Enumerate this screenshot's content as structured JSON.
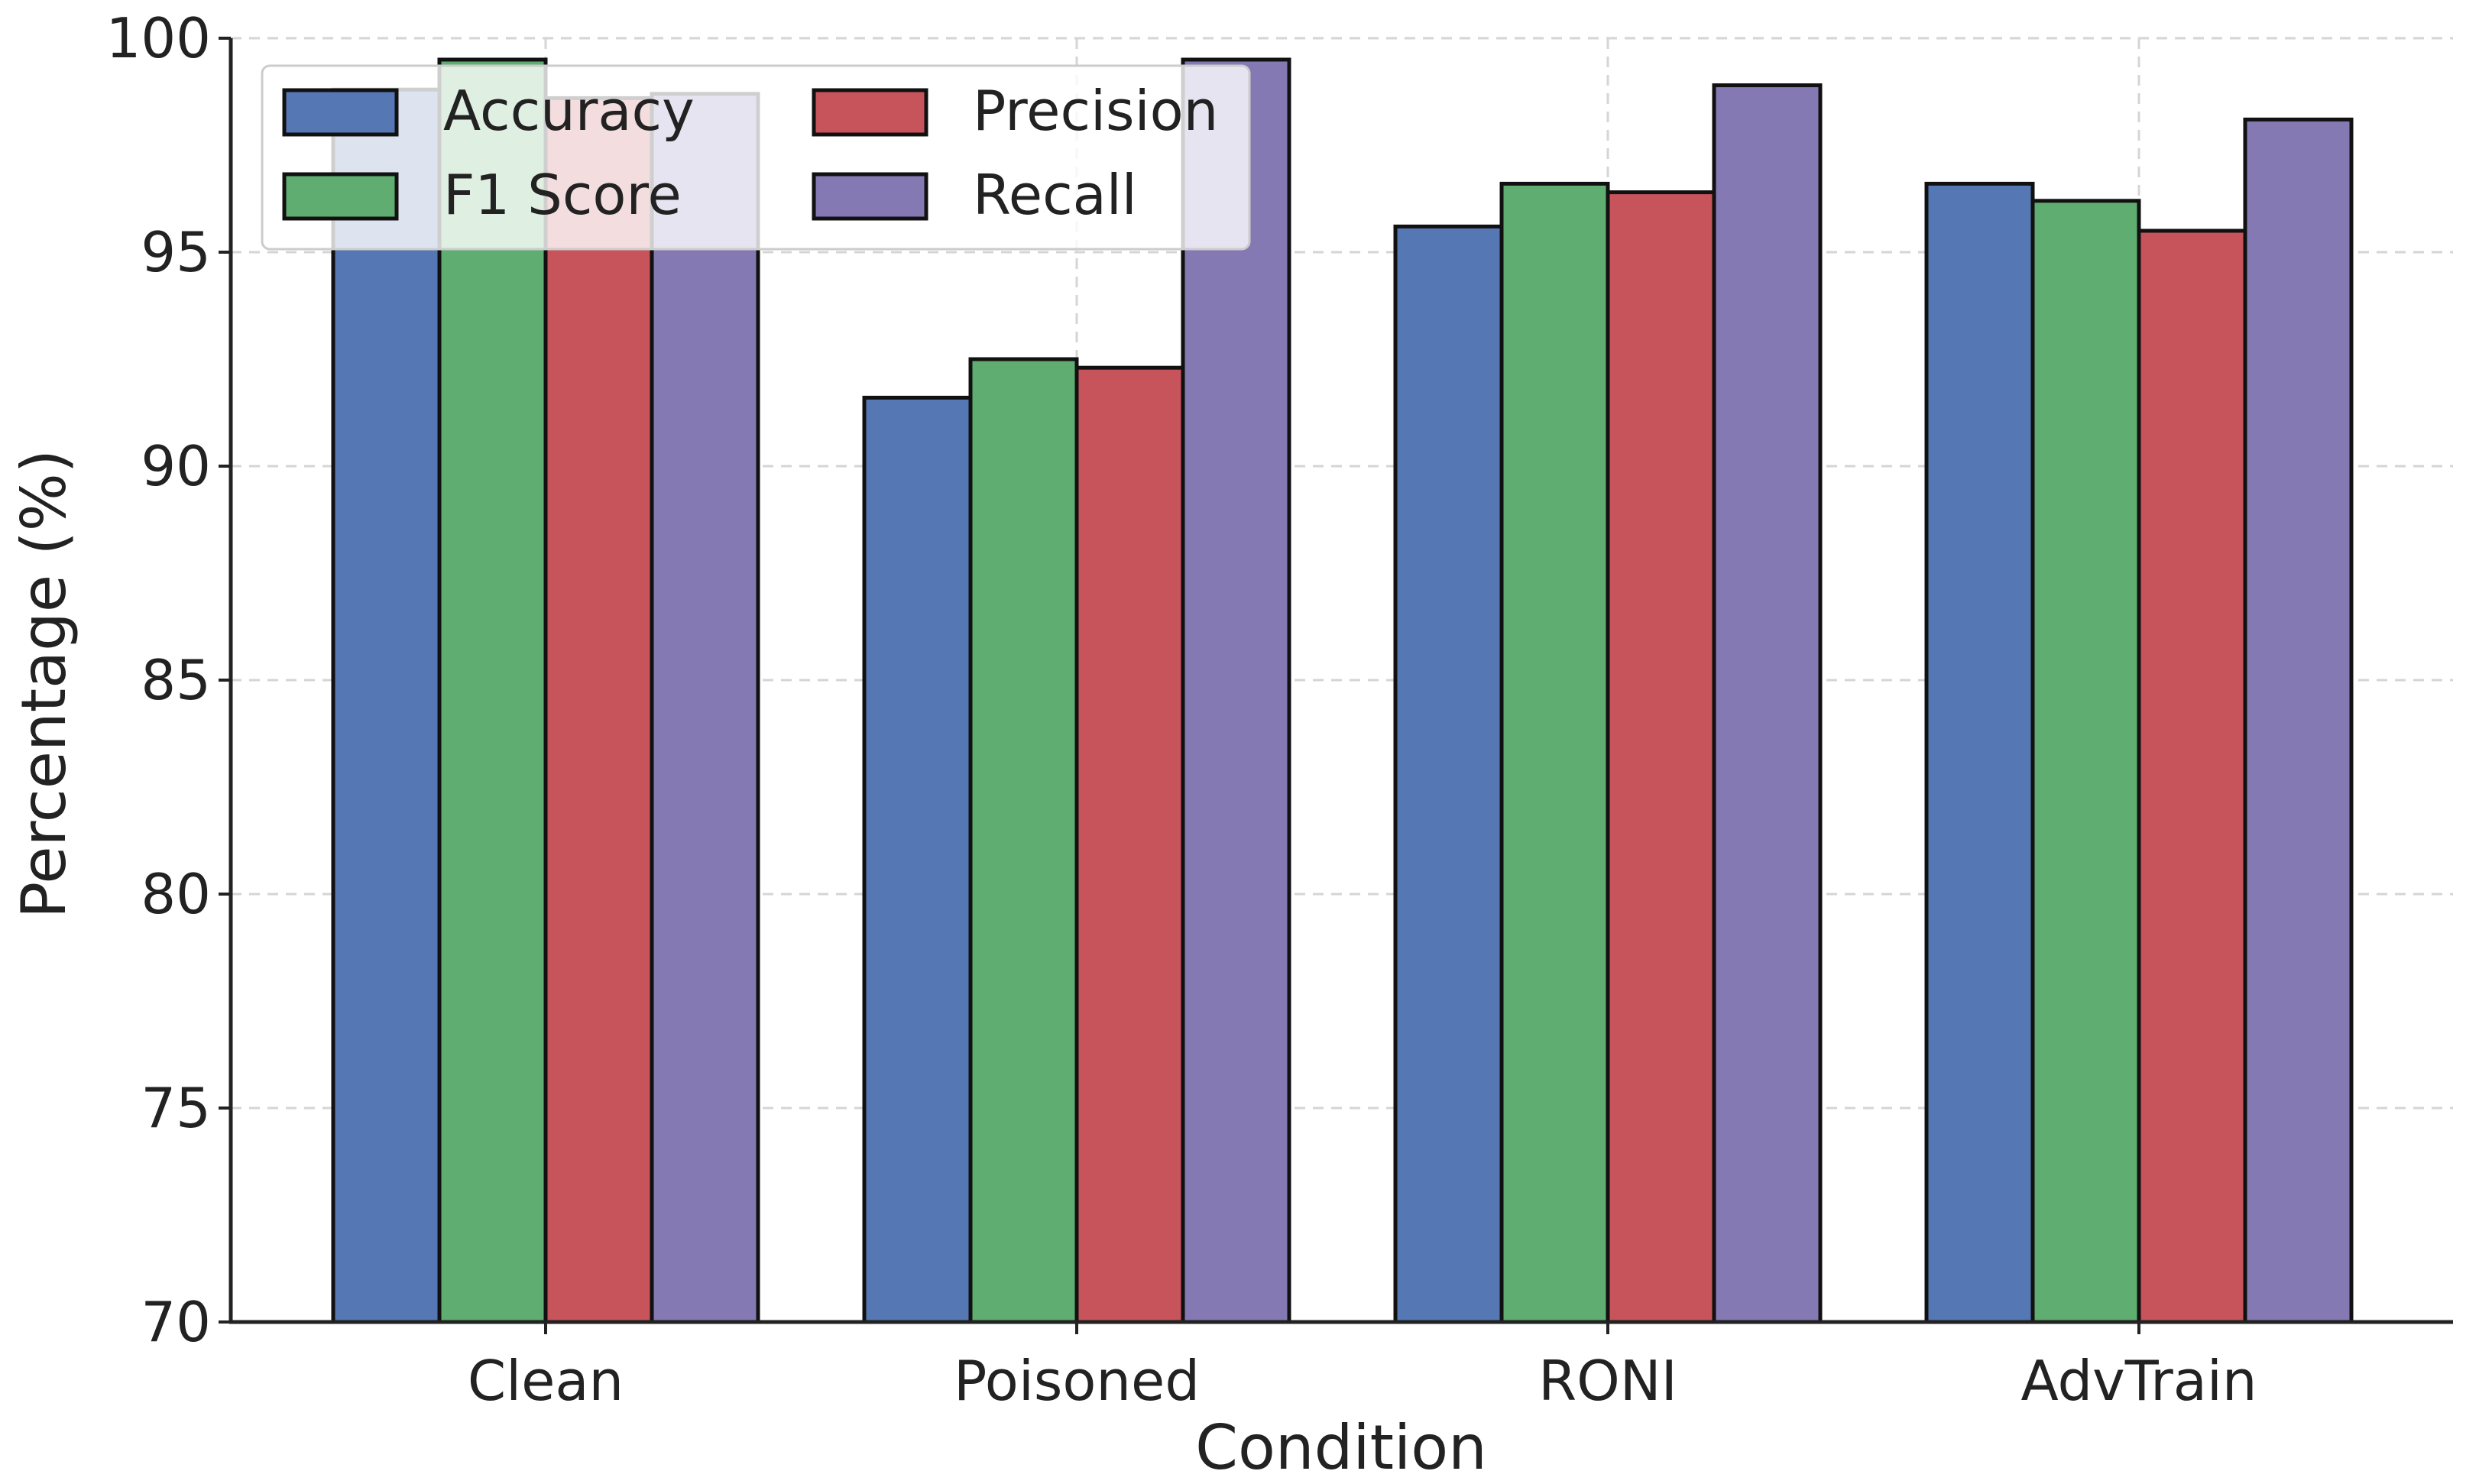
{
  "chart_data": {
    "type": "bar",
    "title": "",
    "xlabel": "Condition",
    "ylabel": "Percentage (%)",
    "ylim": [
      70,
      100
    ],
    "yticks": [
      "70",
      "75",
      "80",
      "85",
      "90",
      "95",
      "100"
    ],
    "grid": true,
    "legend_position": "top-left",
    "categories": [
      "Clean",
      "Poisoned",
      "RONI",
      "AdvTrain"
    ],
    "series": [
      {
        "name": "Accuracy",
        "color": "#5577b3",
        "values": [
          98.8,
          91.6,
          95.6,
          96.6
        ]
      },
      {
        "name": "F1 Score",
        "color": "#5fad70",
        "values": [
          99.5,
          92.5,
          96.6,
          96.2
        ]
      },
      {
        "name": "Precision",
        "color": "#c6545a",
        "values": [
          98.6,
          92.3,
          96.4,
          95.5
        ]
      },
      {
        "name": "Recall",
        "color": "#8479b3",
        "values": [
          98.7,
          99.5,
          98.9,
          98.1
        ]
      }
    ]
  }
}
